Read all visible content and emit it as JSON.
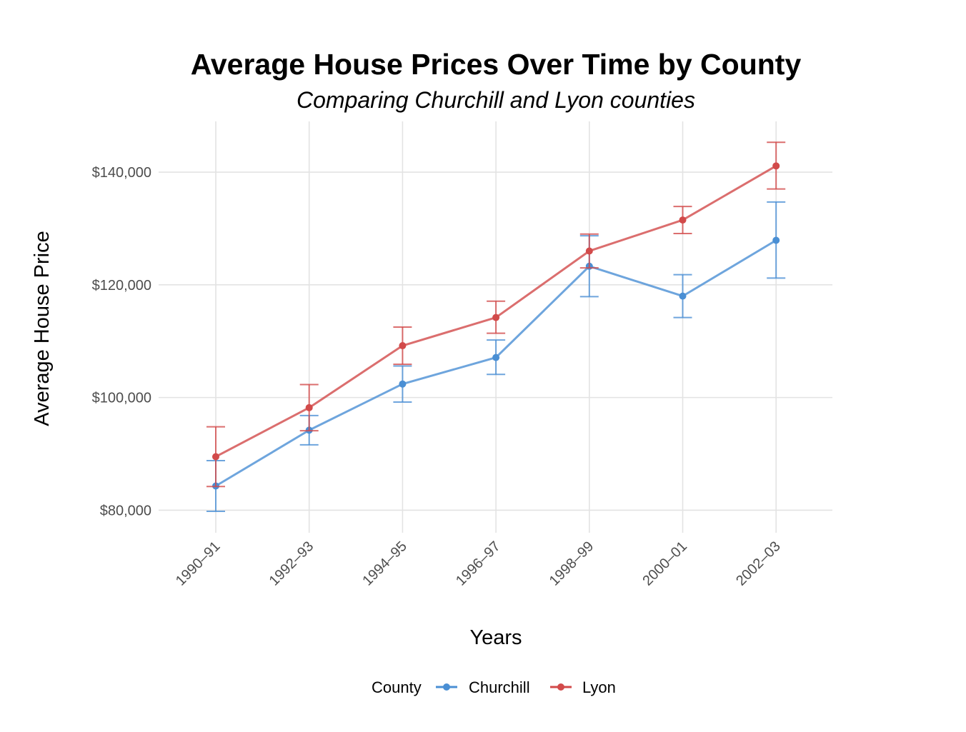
{
  "chart_data": {
    "type": "line",
    "title": "Average House Prices Over Time by County",
    "subtitle": "Comparing Churchill and Lyon counties",
    "xlabel": "Years",
    "ylabel": "Average House Price",
    "categories": [
      "1990–91",
      "1992–93",
      "1994–95",
      "1996–97",
      "1998–99",
      "2000–01",
      "2002–03"
    ],
    "ylim": [
      76000,
      149000
    ],
    "y_ticks": [
      80000,
      100000,
      120000,
      140000
    ],
    "y_tick_labels": [
      "$80,000",
      "$100,000",
      "$120,000",
      "$140,000"
    ],
    "grid": true,
    "legend": {
      "title": "County",
      "position": "bottom"
    },
    "series": [
      {
        "name": "Churchill",
        "color": "#4a8fd4",
        "values": [
          84300,
          94200,
          102400,
          107100,
          123300,
          118000,
          127900
        ],
        "lower": [
          79800,
          91600,
          99200,
          104100,
          117900,
          114200,
          121200
        ],
        "upper": [
          88800,
          96800,
          105600,
          110200,
          128700,
          121800,
          134700
        ]
      },
      {
        "name": "Lyon",
        "color": "#d24a4a",
        "values": [
          89500,
          98200,
          109200,
          114200,
          126000,
          131500,
          141100
        ],
        "lower": [
          84200,
          94100,
          105900,
          111400,
          123000,
          129100,
          137000
        ],
        "upper": [
          94800,
          102300,
          112500,
          117100,
          129000,
          133900,
          145300
        ]
      }
    ]
  }
}
